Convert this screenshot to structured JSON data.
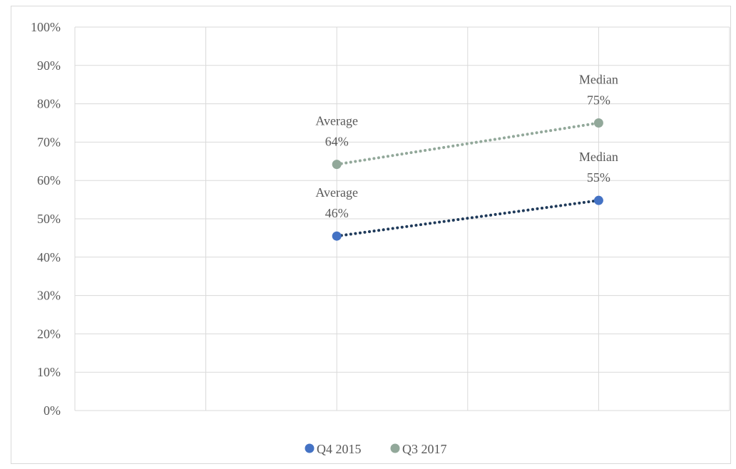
{
  "chart_data": {
    "type": "scatter",
    "title": "",
    "xlabel": "",
    "ylabel": "",
    "ylim": [
      0,
      100
    ],
    "y_ticks": [
      "0%",
      "10%",
      "20%",
      "30%",
      "40%",
      "50%",
      "60%",
      "70%",
      "80%",
      "90%",
      "100%"
    ],
    "x_range": [
      0,
      5
    ],
    "x_gridlines": [
      1,
      2,
      3,
      4,
      5
    ],
    "grid": true,
    "legend_position": "bottom",
    "series": [
      {
        "name": "Q4 2015",
        "color": "#4472c4",
        "line_color": "#1f3a5a",
        "points": [
          {
            "x": 2,
            "y": 45.5,
            "label_name": "Average",
            "label_value": "46%"
          },
          {
            "x": 4,
            "y": 54.8,
            "label_name": "Median",
            "label_value": "55%"
          }
        ]
      },
      {
        "name": "Q3 2017",
        "color": "#92a89a",
        "line_color": "#92a89a",
        "points": [
          {
            "x": 2,
            "y": 64.2,
            "label_name": "Average",
            "label_value": "64%"
          },
          {
            "x": 4,
            "y": 75.0,
            "label_name": "Median",
            "label_value": "75%"
          }
        ]
      }
    ]
  }
}
